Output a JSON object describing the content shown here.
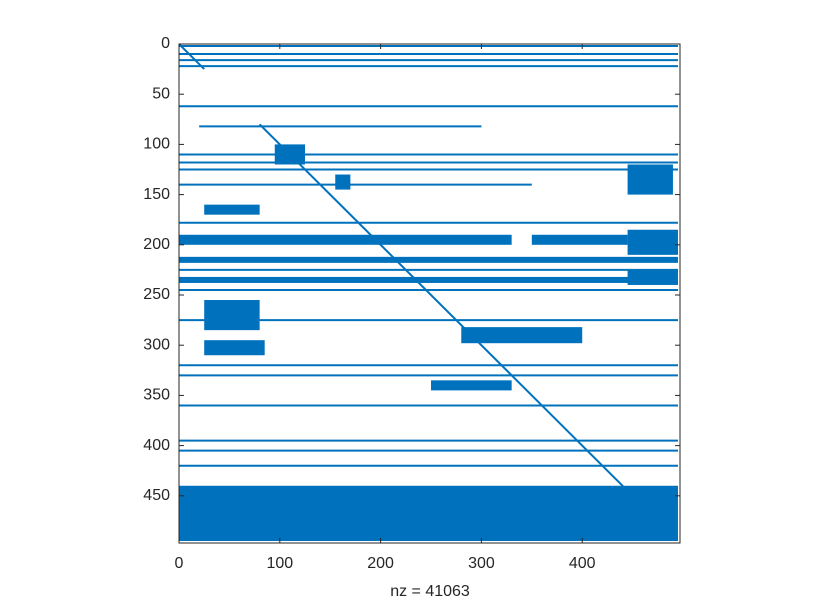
{
  "chart_data": {
    "type": "spy",
    "xlabel": "nz = 41063",
    "color": "#0072bd",
    "xlim": [
      0,
      497
    ],
    "ylim": [
      0,
      497
    ],
    "xticks": [
      0,
      100,
      200,
      300,
      400
    ],
    "yticks": [
      0,
      50,
      100,
      150,
      200,
      250,
      300,
      350,
      400,
      450
    ],
    "blocks": [
      {
        "x": [
          0,
          495
        ],
        "y": [
          440,
          495
        ]
      },
      {
        "x": [
          445,
          490
        ],
        "y": [
          120,
          150
        ]
      },
      {
        "x": [
          445,
          495
        ],
        "y": [
          185,
          210
        ]
      },
      {
        "x": [
          0,
          330
        ],
        "y": [
          190,
          200
        ]
      },
      {
        "x": [
          350,
          445
        ],
        "y": [
          190,
          200
        ]
      },
      {
        "x": [
          25,
          80
        ],
        "y": [
          160,
          170
        ]
      },
      {
        "x": [
          25,
          80
        ],
        "y": [
          255,
          285
        ]
      },
      {
        "x": [
          25,
          85
        ],
        "y": [
          295,
          310
        ]
      },
      {
        "x": [
          0,
          495
        ],
        "y": [
          232,
          238
        ]
      },
      {
        "x": [
          445,
          495
        ],
        "y": [
          225,
          240
        ]
      },
      {
        "x": [
          0,
          495
        ],
        "y": [
          212,
          218
        ]
      },
      {
        "x": [
          280,
          400
        ],
        "y": [
          282,
          298
        ]
      },
      {
        "x": [
          250,
          330
        ],
        "y": [
          335,
          345
        ]
      },
      {
        "x": [
          155,
          170
        ],
        "y": [
          130,
          145
        ]
      },
      {
        "x": [
          95,
          125
        ],
        "y": [
          100,
          120
        ]
      }
    ],
    "segments": [
      {
        "y": 2,
        "x": [
          0,
          495
        ]
      },
      {
        "y": 10,
        "x": [
          0,
          495
        ]
      },
      {
        "y": 16,
        "x": [
          0,
          495
        ]
      },
      {
        "y": 22,
        "x": [
          0,
          495
        ]
      },
      {
        "y": 62,
        "x": [
          0,
          495
        ]
      },
      {
        "y": 82,
        "x": [
          20,
          300
        ]
      },
      {
        "y": 110,
        "x": [
          0,
          495
        ]
      },
      {
        "y": 118,
        "x": [
          0,
          495
        ]
      },
      {
        "y": 125,
        "x": [
          0,
          495
        ]
      },
      {
        "y": 140,
        "x": [
          0,
          350
        ]
      },
      {
        "y": 178,
        "x": [
          0,
          495
        ]
      },
      {
        "y": 225,
        "x": [
          0,
          495
        ]
      },
      {
        "y": 245,
        "x": [
          0,
          495
        ]
      },
      {
        "y": 275,
        "x": [
          0,
          495
        ]
      },
      {
        "y": 320,
        "x": [
          0,
          495
        ]
      },
      {
        "y": 330,
        "x": [
          0,
          495
        ]
      },
      {
        "y": 360,
        "x": [
          0,
          495
        ]
      },
      {
        "y": 395,
        "x": [
          0,
          495
        ]
      },
      {
        "y": 405,
        "x": [
          0,
          495
        ]
      },
      {
        "y": 420,
        "x": [
          0,
          495
        ]
      }
    ],
    "diagonals": [
      {
        "x": [
          0,
          25
        ],
        "y": [
          0,
          25
        ]
      },
      {
        "x": [
          80,
          445
        ],
        "y": [
          80,
          445
        ]
      }
    ]
  }
}
